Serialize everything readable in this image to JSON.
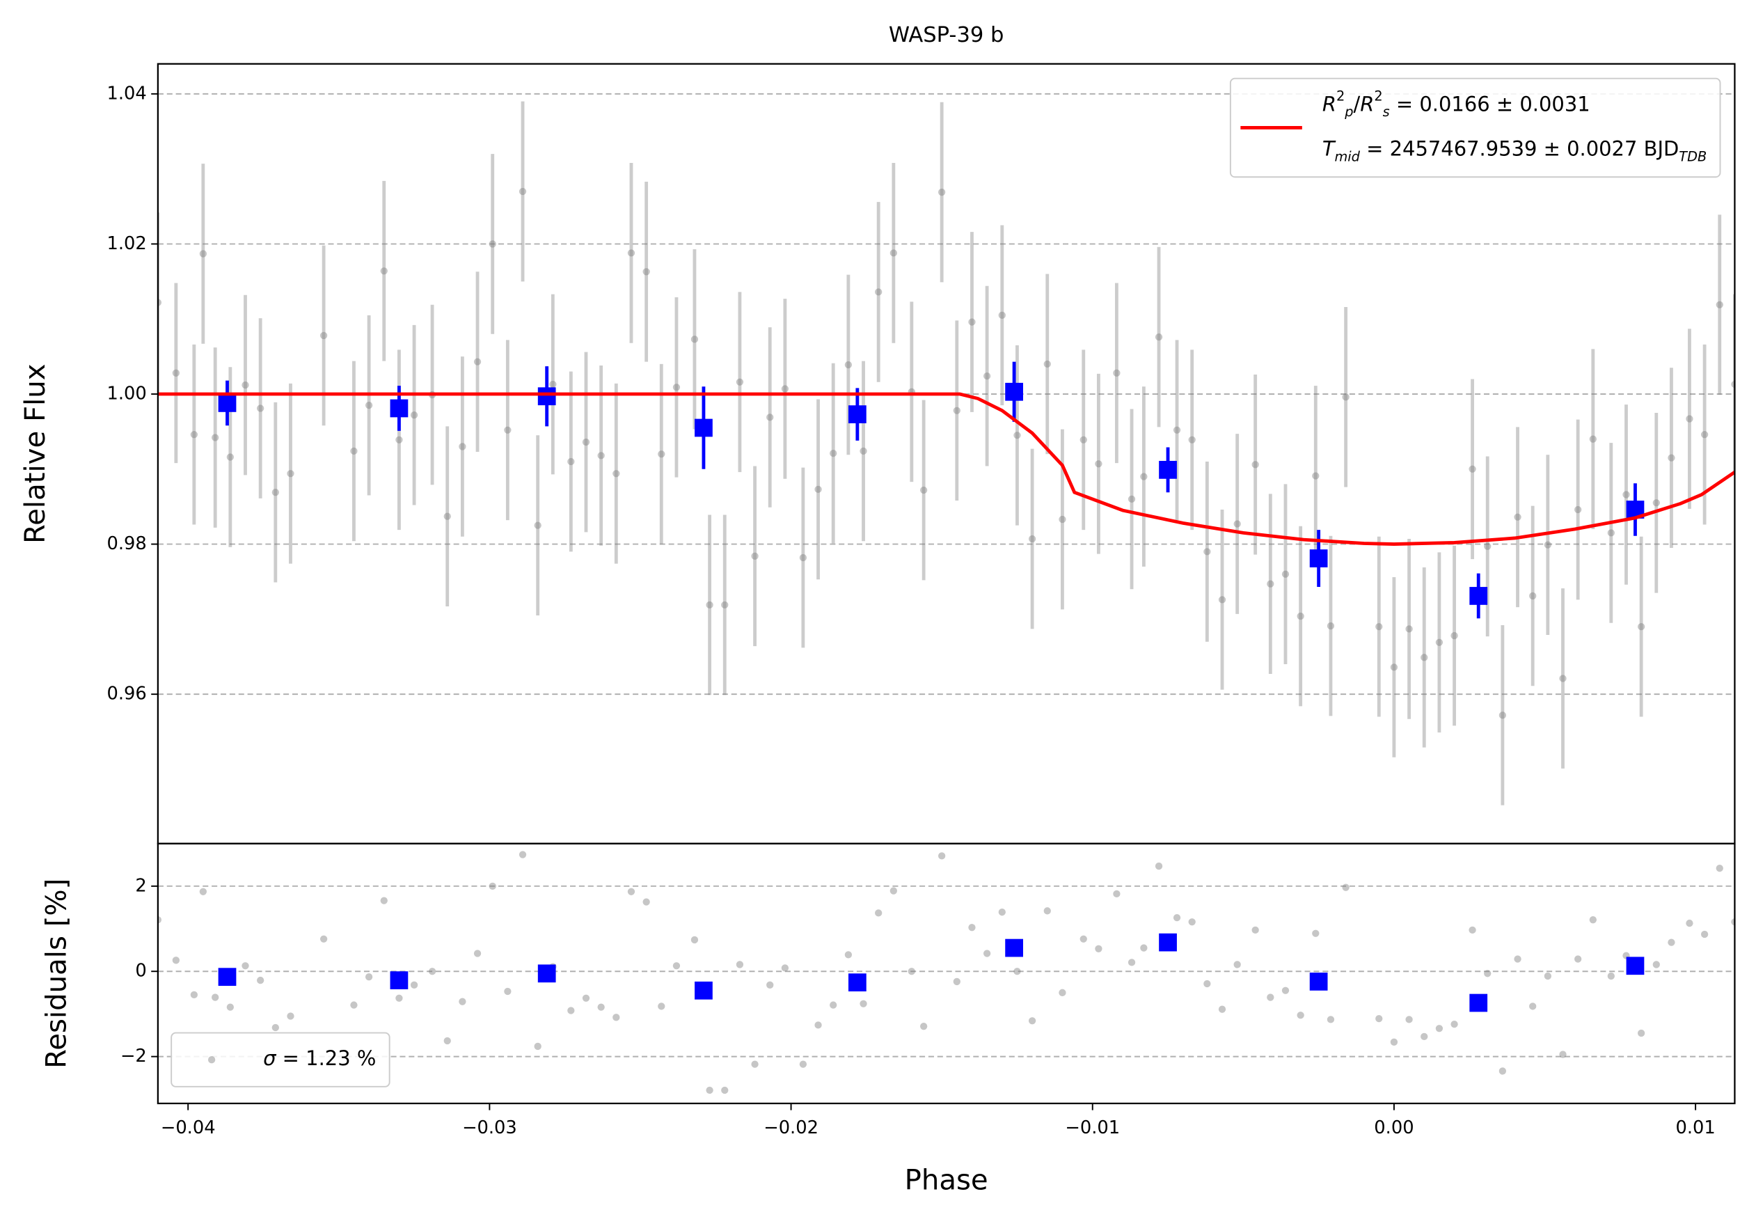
{
  "chart_data": [
    {
      "type": "errorbar",
      "title": "WASP-39 b",
      "ylabel": "Relative Flux",
      "xlim": [
        -0.041,
        0.0113
      ],
      "ylim": [
        0.9401,
        1.044
      ],
      "yticks": [
        0.96,
        0.98,
        {
          "value": 1,
          "label": "1.00"
        },
        1.02,
        1.04
      ],
      "grid": true,
      "legend_loc": "upper right",
      "series": [
        {
          "kind": "errorbar",
          "marker": "o",
          "color": "#808080",
          "alpha": 0.45,
          "yerr": 0.012,
          "x": [
            -0.041,
            -0.0404,
            -0.0398,
            -0.0395,
            -0.0391,
            -0.0386,
            -0.0381,
            -0.0376,
            -0.0371,
            -0.0366,
            -0.0355,
            -0.0345,
            -0.034,
            -0.0335,
            -0.033,
            -0.0325,
            -0.0319,
            -0.0314,
            -0.0309,
            -0.0304,
            -0.0299,
            -0.0294,
            -0.0289,
            -0.0284,
            -0.0279,
            -0.0273,
            -0.0268,
            -0.0263,
            -0.0258,
            -0.0253,
            -0.0248,
            -0.0243,
            -0.0238,
            -0.0232,
            -0.0227,
            -0.0222,
            -0.0217,
            -0.0212,
            -0.0207,
            -0.0202,
            -0.0196,
            -0.0191,
            -0.0186,
            -0.0181,
            -0.0176,
            -0.0171,
            -0.0166,
            -0.016,
            -0.0156,
            -0.015,
            -0.0145,
            -0.014,
            -0.0135,
            -0.013,
            -0.0125,
            -0.012,
            -0.0115,
            -0.011,
            -0.0103,
            -0.0098,
            -0.0092,
            -0.0087,
            -0.0083,
            -0.0078,
            -0.0072,
            -0.0067,
            -0.0062,
            -0.0057,
            -0.0052,
            -0.0046,
            -0.0041,
            -0.0036,
            -0.0031,
            -0.0026,
            -0.0021,
            -0.0016,
            -0.0005,
            0,
            0.0005,
            0.001,
            0.0015,
            0.002,
            0.0026,
            0.0031,
            0.0036,
            0.0041,
            0.0046,
            0.0051,
            0.0056,
            0.0061,
            0.0066,
            0.0072,
            0.0077,
            0.0082,
            0.0087,
            0.0092,
            0.0098,
            0.0103,
            0.0108,
            0.0113
          ],
          "values": [
            1.0122,
            1.0028,
            0.9946,
            1.0187,
            0.9942,
            0.9916,
            1.0012,
            0.9981,
            0.9869,
            0.9894,
            1.0078,
            0.9924,
            0.9985,
            1.0164,
            0.9939,
            0.9972,
            0.9999,
            0.9837,
            0.993,
            1.0043,
            1.02,
            0.9952,
            1.027,
            0.9825,
            1.0013,
            0.991,
            0.9936,
            0.9918,
            0.9894,
            1.0188,
            1.0163,
            0.992,
            1.0009,
            1.0073,
            0.9719,
            0.9719,
            1.0016,
            0.9784,
            0.9969,
            1.0007,
            0.9782,
            0.9873,
            0.9921,
            1.0039,
            0.9924,
            1.0136,
            1.0188,
            1.0003,
            0.9872,
            1.0269,
            0.9978,
            1.0096,
            1.0024,
            1.0105,
            0.9945,
            0.9807,
            1.004,
            0.9833,
            0.9939,
            0.9907,
            1.0028,
            0.986,
            0.989,
            1.0076,
            0.9952,
            0.9939,
            0.979,
            0.9726,
            0.9827,
            0.9906,
            0.9747,
            0.976,
            0.9704,
            0.9891,
            0.9691,
            0.9996,
            0.969,
            0.9636,
            0.9687,
            0.9649,
            0.9669,
            0.9678,
            0.99,
            0.9797,
            0.9572,
            0.9836,
            0.9731,
            0.9799,
            0.9621,
            0.9846,
            0.994,
            0.9815,
            0.9866,
            0.969,
            0.9855,
            0.9915,
            0.9967,
            0.9946,
            1.0119,
            1.0013
          ]
        },
        {
          "kind": "errorbar",
          "marker": "s",
          "color": "#0000ff",
          "alpha": 1,
          "x": [
            -0.0387,
            -0.033,
            -0.0281,
            -0.0229,
            -0.0178,
            -0.0126,
            -0.0075,
            -0.0025,
            0.0028,
            0.008
          ],
          "values": [
            0.9988,
            0.9981,
            0.9997,
            0.9955,
            0.9973,
            1.0003,
            0.9899,
            0.9781,
            0.9731,
            0.9846
          ],
          "yerr": [
            0.003,
            0.003,
            0.004,
            0.0055,
            0.0035,
            0.004,
            0.003,
            0.0038,
            0.003,
            0.0035
          ]
        },
        {
          "kind": "line",
          "color": "#ff0000",
          "x": [
            -0.041,
            -0.0144,
            -0.0138,
            -0.013,
            -0.012,
            -0.011,
            -0.0106,
            -0.009,
            -0.007,
            -0.005,
            -0.003,
            -0.001,
            0,
            0.002,
            0.004,
            0.006,
            0.008,
            0.0095,
            0.0102,
            0.0113
          ],
          "values": [
            1.0,
            1.0,
            0.9994,
            0.9978,
            0.9948,
            0.9905,
            0.9869,
            0.9845,
            0.9828,
            0.9815,
            0.9806,
            0.9801,
            0.98,
            0.9802,
            0.9808,
            0.982,
            0.9835,
            0.9854,
            0.9866,
            0.9896
          ],
          "legend": [
            [
              [
                "R",
                "i"
              ],
              [
                "2",
                "sup"
              ],
              [
                "p",
                "sub-i"
              ],
              [
                "/",
                ""
              ],
              [
                "R",
                "i"
              ],
              [
                "2",
                "sup"
              ],
              [
                "s",
                "sub-i"
              ],
              [
                " = 0.0166 ± 0.0031",
                ""
              ]
            ],
            [
              [
                "T",
                "i"
              ],
              [
                "mid",
                "sub-i"
              ],
              [
                " = 2457467.9539 ± 0.0027 BJD",
                ""
              ],
              [
                "TDB",
                "sub-i"
              ]
            ]
          ]
        }
      ]
    },
    {
      "type": "scatter",
      "ylabel": "Residuals [%]",
      "xlabel": "Phase",
      "xlim": [
        -0.041,
        0.0113
      ],
      "ylim": [
        -3.1,
        3.0
      ],
      "yticks": [
        {
          "value": -2,
          "label": "−2"
        },
        0,
        2
      ],
      "xticks": [
        {
          "value": -0.04,
          "label": "−0.04"
        },
        {
          "value": -0.03,
          "label": "−0.03"
        },
        {
          "value": -0.02,
          "label": "−0.02"
        },
        {
          "value": -0.01,
          "label": "−0.01"
        },
        {
          "value": 0,
          "label": "0.00"
        },
        0.01
      ],
      "grid": true,
      "legend_loc": "lower left",
      "series": [
        {
          "kind": "errorbar",
          "marker": "o",
          "color": "#808080",
          "alpha": 0.45,
          "x": [
            -0.041,
            -0.0404,
            -0.0398,
            -0.0395,
            -0.0391,
            -0.0386,
            -0.0381,
            -0.0376,
            -0.0371,
            -0.0366,
            -0.0355,
            -0.0345,
            -0.034,
            -0.0335,
            -0.033,
            -0.0325,
            -0.0319,
            -0.0314,
            -0.0309,
            -0.0304,
            -0.0299,
            -0.0294,
            -0.0289,
            -0.0284,
            -0.0279,
            -0.0273,
            -0.0268,
            -0.0263,
            -0.0258,
            -0.0253,
            -0.0248,
            -0.0243,
            -0.0238,
            -0.0232,
            -0.0227,
            -0.0222,
            -0.0217,
            -0.0212,
            -0.0207,
            -0.0202,
            -0.0196,
            -0.0191,
            -0.0186,
            -0.0181,
            -0.0176,
            -0.0171,
            -0.0166,
            -0.016,
            -0.0156,
            -0.015,
            -0.0145,
            -0.014,
            -0.0135,
            -0.013,
            -0.0125,
            -0.012,
            -0.0115,
            -0.011,
            -0.0103,
            -0.0098,
            -0.0092,
            -0.0087,
            -0.0083,
            -0.0078,
            -0.0072,
            -0.0067,
            -0.0062,
            -0.0057,
            -0.0052,
            -0.0046,
            -0.0041,
            -0.0036,
            -0.0031,
            -0.0026,
            -0.0021,
            -0.0016,
            -0.0005,
            0,
            0.0005,
            0.001,
            0.0015,
            0.002,
            0.0026,
            0.0031,
            0.0036,
            0.0041,
            0.0046,
            0.0051,
            0.0056,
            0.0061,
            0.0066,
            0.0072,
            0.0077,
            0.0082,
            0.0087,
            0.0092,
            0.0098,
            0.0103,
            0.0108,
            0.0113
          ],
          "values": [
            1.21,
            0.26,
            -0.55,
            1.87,
            -0.61,
            -0.84,
            0.13,
            -0.21,
            -1.32,
            -1.05,
            0.76,
            -0.79,
            -0.13,
            1.66,
            -0.63,
            -0.32,
            0,
            -1.63,
            -0.71,
            0.42,
            2.0,
            -0.47,
            2.74,
            -1.76,
            0.11,
            -0.92,
            -0.63,
            -0.84,
            -1.08,
            1.87,
            1.63,
            -0.82,
            0.13,
            0.74,
            -2.79,
            -2.79,
            0.16,
            -2.18,
            -0.32,
            0.08,
            -2.18,
            -1.26,
            -0.79,
            0.39,
            -0.76,
            1.37,
            1.89,
            0,
            -1.29,
            2.71,
            -0.24,
            1.03,
            0.42,
            1.39,
            0,
            -1.16,
            1.42,
            -0.5,
            0.76,
            0.53,
            1.82,
            0.21,
            0.55,
            2.47,
            1.26,
            1.16,
            -0.29,
            -0.89,
            0.16,
            0.97,
            -0.61,
            -0.45,
            -1.03,
            0.89,
            -1.13,
            1.97,
            -1.11,
            -1.66,
            -1.13,
            -1.53,
            -1.34,
            -1.24,
            0.97,
            -0.05,
            -2.34,
            0.29,
            -0.82,
            -0.11,
            -1.95,
            0.29,
            1.21,
            -0.11,
            0.37,
            -1.45,
            0.16,
            0.68,
            1.13,
            0.87,
            2.42,
            1.16
          ],
          "legend": [
            [
              [
                "σ",
                "i"
              ],
              [
                " = 1.23 %",
                ""
              ]
            ]
          ]
        },
        {
          "kind": "errorbar",
          "marker": "s",
          "color": "#0000ff",
          "alpha": 1,
          "x": [
            -0.0387,
            -0.033,
            -0.0281,
            -0.0229,
            -0.0178,
            -0.0126,
            -0.0075,
            -0.0025,
            0.0028,
            0.008
          ],
          "values": [
            -0.13,
            -0.21,
            -0.05,
            -0.45,
            -0.26,
            0.55,
            0.68,
            -0.24,
            -0.74,
            0.13
          ]
        }
      ]
    }
  ]
}
